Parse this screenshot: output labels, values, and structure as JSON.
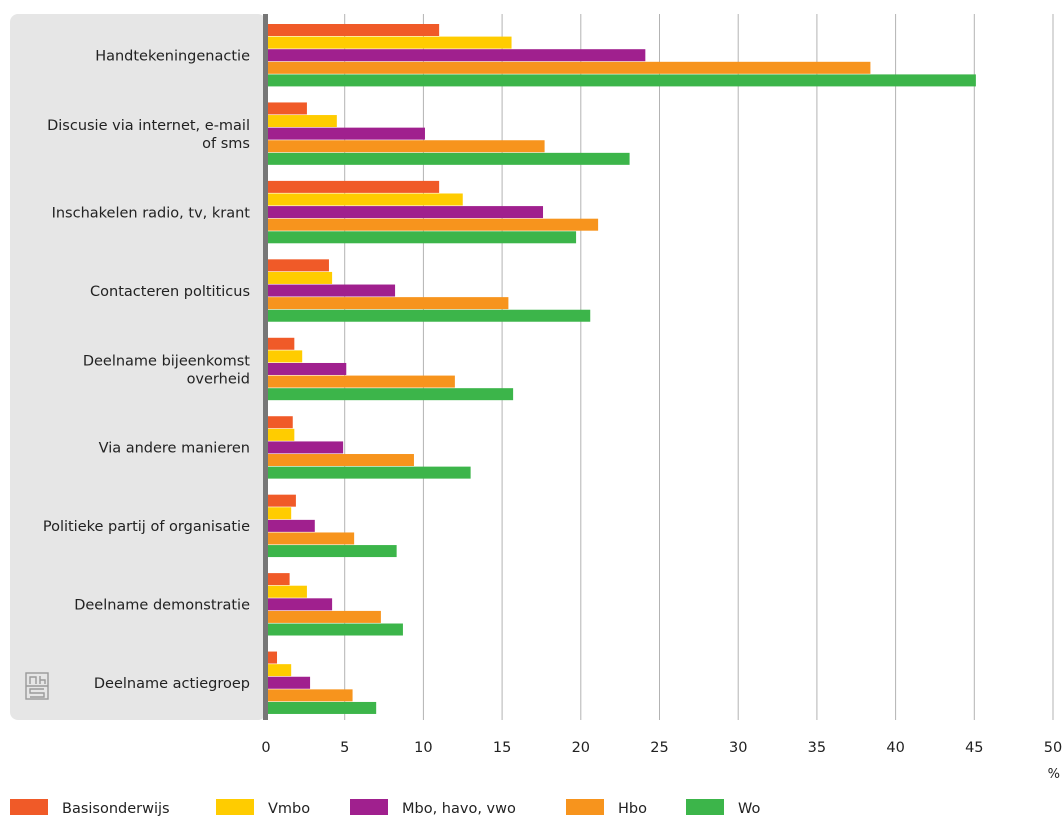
{
  "chart_data": {
    "type": "bar",
    "orientation": "horizontal",
    "categories": [
      [
        "Handtekeningenactie"
      ],
      [
        "Discusie via internet, e-mail",
        "of sms"
      ],
      [
        "Inschakelen radio, tv, krant"
      ],
      [
        "Contacteren poltiticus"
      ],
      [
        "Deelname bijeenkomst",
        "overheid"
      ],
      [
        "Via andere manieren"
      ],
      [
        "Politieke partij of organisatie"
      ],
      [
        "Deelname demonstratie"
      ],
      [
        "Deelname actiegroep"
      ]
    ],
    "series": [
      {
        "name": "Basisonderwijs",
        "color": "#f05a28",
        "values": [
          11.0,
          2.6,
          11.0,
          4.0,
          1.8,
          1.7,
          1.9,
          1.5,
          0.7
        ]
      },
      {
        "name": "Vmbo",
        "color": "#ffcc00",
        "values": [
          15.6,
          4.5,
          12.5,
          4.2,
          2.3,
          1.8,
          1.6,
          2.6,
          1.6
        ]
      },
      {
        "name": "Mbo, havo, vwo",
        "color": "#a0208e",
        "values": [
          24.1,
          10.1,
          17.6,
          8.2,
          5.1,
          4.9,
          3.1,
          4.2,
          2.8
        ]
      },
      {
        "name": "Hbo",
        "color": "#f7941d",
        "values": [
          38.4,
          17.7,
          21.1,
          15.4,
          12.0,
          9.4,
          5.6,
          7.3,
          5.5
        ]
      },
      {
        "name": "Wo",
        "color": "#3cb54a",
        "values": [
          45.1,
          23.1,
          19.7,
          20.6,
          15.7,
          13.0,
          8.3,
          8.7,
          7.0
        ]
      }
    ],
    "x_ticks": [
      0,
      5,
      10,
      15,
      20,
      25,
      30,
      35,
      40,
      45,
      50
    ],
    "xlim": [
      0,
      50
    ],
    "unit": "%",
    "grid": "vertical",
    "legend_position": "bottom"
  },
  "logo": {
    "name": "cbs-logo-icon"
  }
}
